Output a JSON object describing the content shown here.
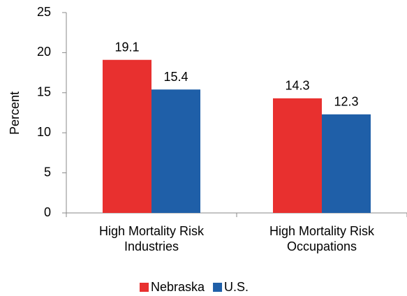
{
  "chart_data": {
    "type": "bar",
    "y_label": "Percent",
    "categories": [
      "High Mortality Risk\nIndustries",
      "High Mortality Risk\nOccupations"
    ],
    "series": [
      {
        "name": "Nebraska",
        "color": "#e8302f",
        "values": [
          19.1,
          14.3
        ],
        "value_labels": [
          "19.1",
          "14.3"
        ]
      },
      {
        "name": "U.S.",
        "color": "#1f5fa8",
        "values": [
          15.4,
          12.3
        ],
        "value_labels": [
          "15.4",
          "12.3"
        ]
      }
    ],
    "ylim": [
      0,
      25
    ],
    "yticks": [
      0,
      5,
      10,
      15,
      20,
      25
    ],
    "grid": false,
    "legend": "bottom"
  }
}
